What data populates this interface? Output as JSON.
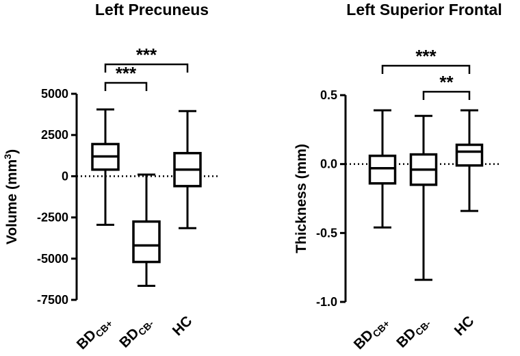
{
  "chart_data": [
    {
      "type": "box",
      "title": "Left Precuneus",
      "ylabel": "Volume (mm3)",
      "ylabel_main": "Volume (mm",
      "ylabel_sup": "3",
      "ylabel_tail": ")",
      "ylim": [
        -7500,
        5000
      ],
      "yticks": [
        5000,
        2500,
        0,
        -2500,
        -5000,
        -7500
      ],
      "ytick_labels": [
        "5000",
        "2500",
        "0",
        "-2500",
        "-5000",
        "-7500"
      ],
      "reference_line": 0,
      "categories": [
        {
          "main": "BD",
          "sub": "CB+"
        },
        {
          "main": "BD",
          "sub": "CB-"
        },
        {
          "main": "HC",
          "sub": ""
        }
      ],
      "boxes": [
        {
          "min": -2950,
          "q1": 400,
          "median": 1200,
          "q3": 1950,
          "max": 4050
        },
        {
          "min": -6650,
          "q1": -5200,
          "median": -4200,
          "q3": -2750,
          "max": 100
        },
        {
          "min": -3150,
          "q1": -600,
          "median": 400,
          "q3": 1400,
          "max": 3950
        }
      ],
      "significance": [
        {
          "from": 0,
          "to": 2,
          "label": "***",
          "level": 1
        },
        {
          "from": 0,
          "to": 1,
          "label": "***",
          "level": 0
        }
      ]
    },
    {
      "type": "box",
      "title": "Left Superior Frontal",
      "ylabel": "Thickness (mm)",
      "ylabel_main": "Thickness (mm)",
      "ylabel_sup": "",
      "ylabel_tail": "",
      "ylim": [
        -1.0,
        0.5
      ],
      "yticks": [
        0.5,
        0.0,
        -0.5,
        -1.0
      ],
      "ytick_labels": [
        "0.5",
        "0.0",
        "-0.5",
        "-1.0"
      ],
      "reference_line": 0,
      "categories": [
        {
          "main": "BD",
          "sub": "CB+"
        },
        {
          "main": "BD",
          "sub": "CB-"
        },
        {
          "main": "HC",
          "sub": ""
        }
      ],
      "boxes": [
        {
          "min": -0.46,
          "q1": -0.14,
          "median": -0.03,
          "q3": 0.06,
          "max": 0.39
        },
        {
          "min": -0.84,
          "q1": -0.15,
          "median": -0.04,
          "q3": 0.07,
          "max": 0.35
        },
        {
          "min": -0.34,
          "q1": -0.01,
          "median": 0.09,
          "q3": 0.14,
          "max": 0.39
        }
      ],
      "significance": [
        {
          "from": 0,
          "to": 2,
          "label": "***",
          "level": 1
        },
        {
          "from": 1,
          "to": 2,
          "label": "**",
          "level": 0
        }
      ]
    }
  ]
}
